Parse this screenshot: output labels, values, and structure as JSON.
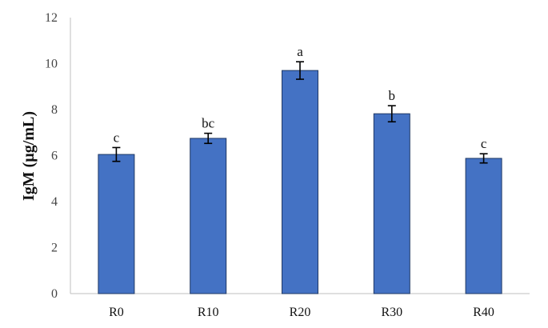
{
  "chart_data": {
    "type": "bar",
    "categories": [
      "R0",
      "R10",
      "R20",
      "R30",
      "R40"
    ],
    "values": [
      6.05,
      6.75,
      9.7,
      7.82,
      5.88
    ],
    "errors": [
      0.3,
      0.22,
      0.38,
      0.35,
      0.2
    ],
    "significance": [
      "c",
      "bc",
      "a",
      "b",
      "c"
    ],
    "ylabel": "IgM (µg/mL)",
    "xlabel": "",
    "title": "",
    "ylim": [
      0,
      12
    ],
    "yticks": [
      0,
      2,
      4,
      6,
      8,
      10,
      12
    ],
    "grid": false,
    "legend": "none",
    "colors": {
      "bar_fill": "#4472C4",
      "bar_stroke": "#1F3864",
      "error_bar": "#000000",
      "axis": "#BFBFBF"
    }
  }
}
